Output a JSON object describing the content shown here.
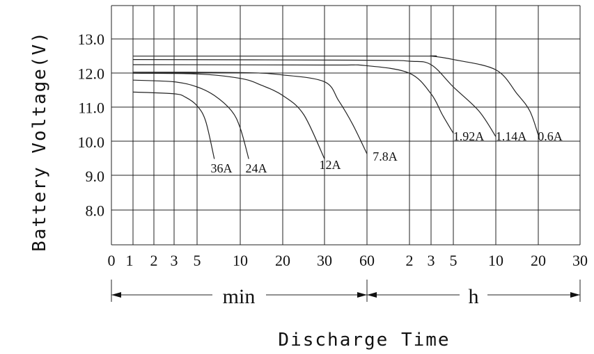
{
  "chart_data": {
    "type": "line",
    "title": "",
    "xlabel": "Discharge Time",
    "ylabel": "Battery Voltage(V)",
    "ylim": [
      7.0,
      14.0
    ],
    "y_ticks": [
      "13.0",
      "12.0",
      "11.0",
      "10.0",
      "9.0",
      "8.0"
    ],
    "x_ticks": [
      "0",
      "1",
      "2",
      "3",
      "5",
      "10",
      "20",
      "30",
      "60",
      "2",
      "3",
      "5",
      "10",
      "20",
      "30"
    ],
    "x_units": {
      "min_label": "min",
      "h_label": "h"
    },
    "grid": true,
    "series": [
      {
        "name": "36A",
        "x_unit": "min",
        "points": [
          [
            1,
            11.45
          ],
          [
            3,
            11.4
          ],
          [
            4,
            11.3
          ],
          [
            5,
            11.05
          ],
          [
            6,
            10.6
          ],
          [
            7,
            9.5
          ]
        ]
      },
      {
        "name": "24A",
        "x_unit": "min",
        "points": [
          [
            1,
            11.8
          ],
          [
            3,
            11.75
          ],
          [
            5,
            11.6
          ],
          [
            7,
            11.35
          ],
          [
            9,
            10.9
          ],
          [
            10,
            10.4
          ],
          [
            12,
            9.5
          ]
        ]
      },
      {
        "name": "12A",
        "x_unit": "min",
        "points": [
          [
            1,
            12.0
          ],
          [
            5,
            11.98
          ],
          [
            10,
            11.85
          ],
          [
            15,
            11.65
          ],
          [
            20,
            11.35
          ],
          [
            25,
            10.8
          ],
          [
            30,
            9.5
          ]
        ]
      },
      {
        "name": "7.8A",
        "x_unit": "min",
        "points": [
          [
            1,
            12.03
          ],
          [
            10,
            12.02
          ],
          [
            20,
            11.95
          ],
          [
            30,
            11.75
          ],
          [
            40,
            11.2
          ],
          [
            50,
            10.5
          ],
          [
            60,
            9.65
          ]
        ]
      },
      {
        "name": "1.92A",
        "x_unit": "hours",
        "points": [
          [
            0.0167,
            12.25
          ],
          [
            0.5,
            12.24
          ],
          [
            1.0,
            12.22
          ],
          [
            2.0,
            12.0
          ],
          [
            3.0,
            11.4
          ],
          [
            4.0,
            10.8
          ],
          [
            5.0,
            10.25
          ]
        ]
      },
      {
        "name": "1.14A",
        "x_unit": "hours",
        "points": [
          [
            0.0167,
            12.4
          ],
          [
            1.0,
            12.38
          ],
          [
            2.0,
            12.35
          ],
          [
            3.0,
            12.25
          ],
          [
            5.0,
            11.6
          ],
          [
            8.0,
            10.9
          ],
          [
            10.0,
            10.15
          ]
        ]
      },
      {
        "name": "0.6A",
        "x_unit": "hours",
        "points": [
          [
            0.0167,
            12.5
          ],
          [
            2.0,
            12.5
          ],
          [
            3.0,
            12.5
          ],
          [
            5.0,
            12.4
          ],
          [
            10.0,
            12.1
          ],
          [
            15.0,
            11.4
          ],
          [
            18.0,
            10.9
          ],
          [
            20.0,
            10.2
          ]
        ]
      }
    ]
  }
}
